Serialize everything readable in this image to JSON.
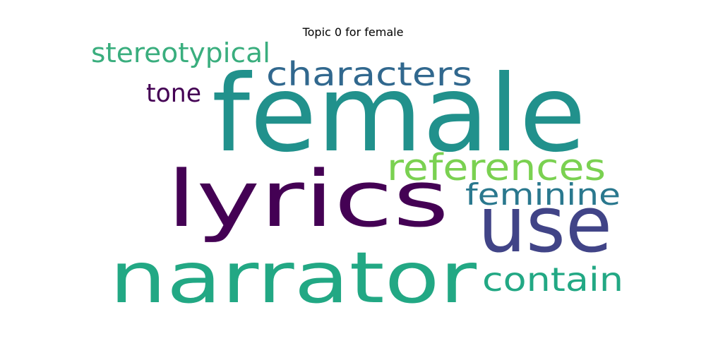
{
  "chart_data": {
    "type": "wordcloud",
    "title": "Topic 0 for female",
    "words": [
      {
        "text": "female",
        "color": "#21918c"
      },
      {
        "text": "lyrics",
        "color": "#440154"
      },
      {
        "text": "narrator",
        "color": "#22a884"
      },
      {
        "text": "use",
        "color": "#414487"
      },
      {
        "text": "characters",
        "color": "#31688e"
      },
      {
        "text": "references",
        "color": "#7ad151"
      },
      {
        "text": "feminine",
        "color": "#2a788e"
      },
      {
        "text": "contain",
        "color": "#22a884"
      },
      {
        "text": "stereotypical",
        "color": "#3aae7e"
      },
      {
        "text": "tone",
        "color": "#440154"
      }
    ]
  }
}
